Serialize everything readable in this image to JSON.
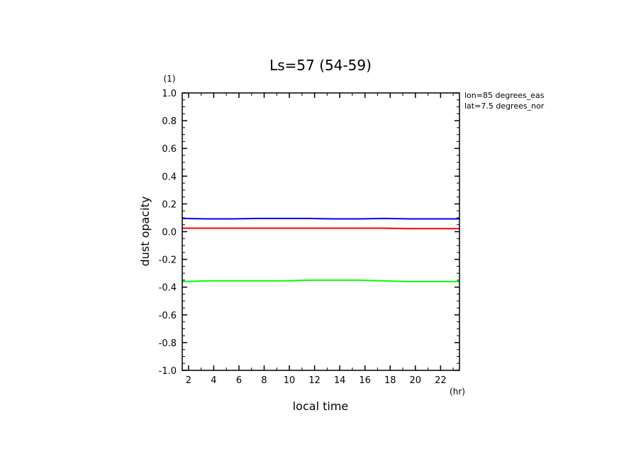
{
  "chart_data": {
    "type": "line",
    "title": "Ls=57 (54-59)",
    "xlabel": "local time",
    "xunit": "(hr)",
    "ylabel": "dust opacity",
    "yunit": "(1)",
    "xlim": [
      1.5,
      23.5
    ],
    "ylim": [
      -1.0,
      1.0
    ],
    "x_ticks": [
      2,
      4,
      6,
      8,
      10,
      12,
      14,
      16,
      18,
      20,
      22
    ],
    "y_ticks": [
      "1.0",
      "0.8",
      "0.6",
      "0.4",
      "0.2",
      "0.0",
      "-0.2",
      "-0.4",
      "-0.6",
      "-0.8",
      "-1.0"
    ],
    "annotations": [
      "lon=85 degrees_eas",
      "lat=7.5 degrees_nor"
    ],
    "x": [
      1.5,
      3.5,
      5.5,
      7.5,
      9.5,
      11.5,
      13.5,
      15.5,
      17.5,
      19.5,
      21.5,
      23.5
    ],
    "series": [
      {
        "color": "#0000ff",
        "values": [
          0.095,
          0.092,
          0.092,
          0.095,
          0.095,
          0.095,
          0.092,
          0.092,
          0.095,
          0.092,
          0.092,
          0.092
        ]
      },
      {
        "color": "#ff0000",
        "values": [
          0.025,
          0.025,
          0.025,
          0.025,
          0.025,
          0.025,
          0.025,
          0.025,
          0.025,
          0.022,
          0.022,
          0.022
        ]
      },
      {
        "color": "#00ff00",
        "values": [
          -0.36,
          -0.355,
          -0.355,
          -0.355,
          -0.355,
          -0.35,
          -0.35,
          -0.35,
          -0.355,
          -0.36,
          -0.36,
          -0.36
        ]
      }
    ]
  }
}
